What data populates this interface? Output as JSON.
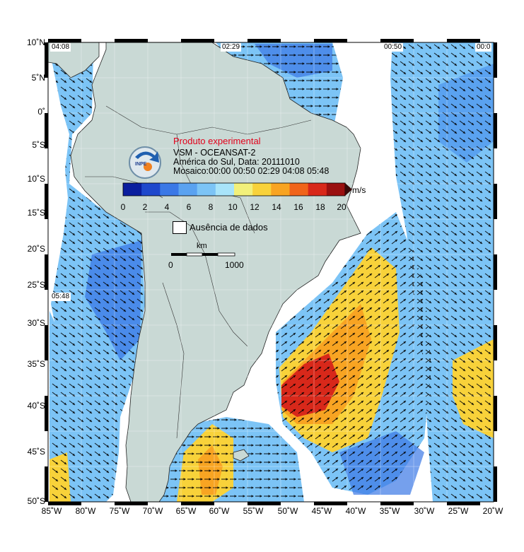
{
  "map": {
    "title_experimental": "Produto experimental",
    "product": "VSM - OCEANSAT-2",
    "region_date": "América do Sul, Data: 20111010",
    "mosaic": "Mosaico:00:00 00:50 02:29 04:08 05:48",
    "logo_text": "INPE",
    "lat_labels": [
      "10˚N",
      "5˚N",
      "0˚",
      "5˚S",
      "10˚S",
      "15˚S",
      "20˚S",
      "25˚S",
      "30˚S",
      "35˚S",
      "40˚S",
      "45˚S",
      "50˚S"
    ],
    "lon_labels": [
      "85˚W",
      "80˚W",
      "75˚W",
      "70˚W",
      "65˚W",
      "60˚W",
      "55˚W",
      "50˚W",
      "45˚W",
      "40˚W",
      "35˚W",
      "30˚W",
      "25˚W",
      "20˚W"
    ],
    "swath_times": {
      "t1": "04:08",
      "t2": "02:29",
      "t3": "00:50",
      "t4": "00:0",
      "t5": "05:48"
    },
    "colorbar": {
      "unit": "m/s",
      "ticks": [
        "0",
        "2",
        "4",
        "6",
        "8",
        "10",
        "12",
        "14",
        "16",
        "18",
        "20"
      ],
      "colors": [
        "#0a1e9e",
        "#1e48cc",
        "#3a78e6",
        "#5aa2f0",
        "#7cc4f6",
        "#a8e4fa",
        "#f2f07a",
        "#f8d23a",
        "#f8a422",
        "#f0641a",
        "#d8281a",
        "#9a1010"
      ]
    },
    "no_data_label": "Ausência de dados",
    "scale": {
      "unit": "km",
      "min": "0",
      "max": "1000"
    },
    "land_color": "#c9d9d5",
    "ocean_nodata_color": "#ffffff"
  }
}
